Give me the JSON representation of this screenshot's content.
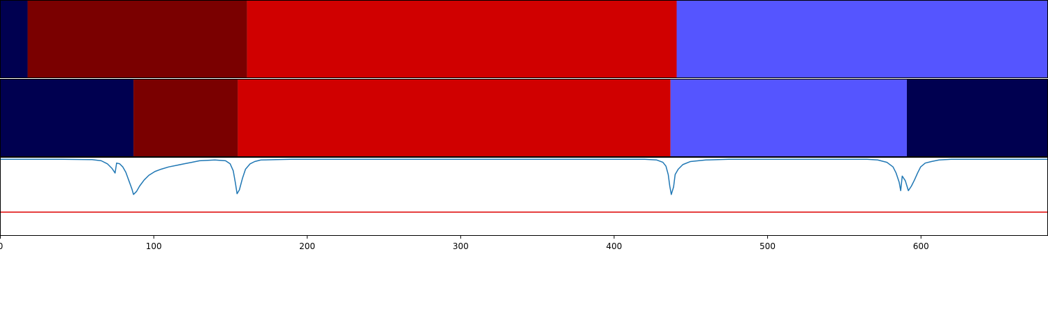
{
  "chart_data": [
    {
      "type": "bar",
      "subtype": "segment-strip",
      "segments": [
        {
          "start": 0,
          "end": 18,
          "color": "#000050"
        },
        {
          "start": 18,
          "end": 161,
          "color": "#7a0000"
        },
        {
          "start": 161,
          "end": 441,
          "color": "#d00000"
        },
        {
          "start": 441,
          "end": 683,
          "color": "#5555ff"
        }
      ]
    },
    {
      "type": "bar",
      "subtype": "segment-strip",
      "segments": [
        {
          "start": 0,
          "end": 87,
          "color": "#000050"
        },
        {
          "start": 87,
          "end": 155,
          "color": "#7a0000"
        },
        {
          "start": 155,
          "end": 437,
          "color": "#d00000"
        },
        {
          "start": 437,
          "end": 591,
          "color": "#5555ff"
        },
        {
          "start": 591,
          "end": 683,
          "color": "#000050"
        }
      ]
    },
    {
      "type": "line",
      "xlim": [
        0,
        683
      ],
      "ylim": [
        -1.0,
        0.02
      ],
      "x_ticks": [
        0,
        100,
        200,
        300,
        400,
        500,
        600
      ],
      "threshold": {
        "value": -0.69,
        "color": "#dd0000"
      },
      "series": [
        {
          "color": "#1f77b4",
          "points": [
            [
              0,
              0
            ],
            [
              40,
              0
            ],
            [
              60,
              -0.005
            ],
            [
              66,
              -0.02
            ],
            [
              70,
              -0.06
            ],
            [
              73,
              -0.12
            ],
            [
              75,
              -0.18
            ],
            [
              76,
              -0.05
            ],
            [
              78,
              -0.06
            ],
            [
              80,
              -0.1
            ],
            [
              82,
              -0.17
            ],
            [
              84,
              -0.28
            ],
            [
              86,
              -0.39
            ],
            [
              87,
              -0.46
            ],
            [
              89,
              -0.42
            ],
            [
              91,
              -0.35
            ],
            [
              94,
              -0.27
            ],
            [
              97,
              -0.21
            ],
            [
              101,
              -0.16
            ],
            [
              105,
              -0.13
            ],
            [
              110,
              -0.1
            ],
            [
              115,
              -0.08
            ],
            [
              120,
              -0.06
            ],
            [
              125,
              -0.04
            ],
            [
              130,
              -0.02
            ],
            [
              140,
              -0.01
            ],
            [
              147,
              -0.02
            ],
            [
              150,
              -0.06
            ],
            [
              152,
              -0.15
            ],
            [
              153.5,
              -0.32
            ],
            [
              154.5,
              -0.45
            ],
            [
              156,
              -0.4
            ],
            [
              158,
              -0.25
            ],
            [
              160,
              -0.13
            ],
            [
              163,
              -0.06
            ],
            [
              166,
              -0.03
            ],
            [
              170,
              -0.01
            ],
            [
              180,
              -0.005
            ],
            [
              190,
              0
            ],
            [
              420,
              0
            ],
            [
              428,
              -0.01
            ],
            [
              432,
              -0.04
            ],
            [
              434,
              -0.09
            ],
            [
              435.5,
              -0.2
            ],
            [
              436.5,
              -0.35
            ],
            [
              437.5,
              -0.46
            ],
            [
              439,
              -0.36
            ],
            [
              440,
              -0.2
            ],
            [
              442,
              -0.13
            ],
            [
              445,
              -0.07
            ],
            [
              450,
              -0.03
            ],
            [
              460,
              -0.01
            ],
            [
              475,
              0
            ],
            [
              565,
              0
            ],
            [
              572,
              -0.01
            ],
            [
              578,
              -0.04
            ],
            [
              582,
              -0.1
            ],
            [
              584,
              -0.18
            ],
            [
              586,
              -0.3
            ],
            [
              587,
              -0.41
            ],
            [
              588,
              -0.22
            ],
            [
              590,
              -0.28
            ],
            [
              592,
              -0.41
            ],
            [
              594,
              -0.35
            ],
            [
              596,
              -0.27
            ],
            [
              598,
              -0.18
            ],
            [
              600,
              -0.1
            ],
            [
              603,
              -0.05
            ],
            [
              607,
              -0.03
            ],
            [
              612,
              -0.01
            ],
            [
              620,
              0
            ],
            [
              683,
              0
            ]
          ]
        }
      ]
    }
  ]
}
